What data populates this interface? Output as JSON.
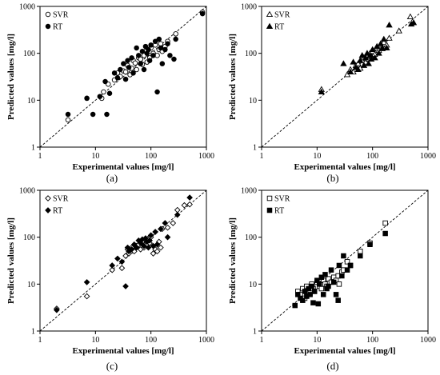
{
  "chart_data": [
    {
      "panel": "(a)",
      "type": "scatter",
      "xlabel": "Experimental values [mg/l]",
      "ylabel": "Predicted values [mg/l]",
      "xlim": [
        1,
        1000
      ],
      "ylim": [
        1,
        1000
      ],
      "log_scale": true,
      "grid": false,
      "x_ticks": [
        "1",
        "10",
        "100",
        "1000"
      ],
      "y_ticks": [
        "1",
        "10",
        "100",
        "1000"
      ],
      "reference_line": "y = x (dashed)",
      "legend_position": "top-left",
      "series": [
        {
          "name": "SVR",
          "marker": "circle",
          "fill": "open",
          "points": [
            [
              3.2,
              3.8
            ],
            [
              7,
              11
            ],
            [
              13,
              11
            ],
            [
              14,
              15
            ],
            [
              17,
              22
            ],
            [
              22,
              27
            ],
            [
              25,
              38
            ],
            [
              28,
              32
            ],
            [
              32,
              42
            ],
            [
              35,
              40
            ],
            [
              38,
              55
            ],
            [
              42,
              35
            ],
            [
              45,
              48
            ],
            [
              48,
              70
            ],
            [
              52,
              62
            ],
            [
              55,
              45
            ],
            [
              60,
              80
            ],
            [
              65,
              75
            ],
            [
              70,
              58
            ],
            [
              75,
              90
            ],
            [
              80,
              110
            ],
            [
              85,
              65
            ],
            [
              90,
              120
            ],
            [
              95,
              80
            ],
            [
              100,
              130
            ],
            [
              110,
              100
            ],
            [
              120,
              150
            ],
            [
              130,
              90
            ],
            [
              140,
              120
            ],
            [
              150,
              160
            ],
            [
              160,
              110
            ],
            [
              180,
              140
            ],
            [
              200,
              180
            ],
            [
              280,
              260
            ],
            [
              850,
              750
            ]
          ]
        },
        {
          "name": "RT",
          "marker": "circle",
          "fill": "solid",
          "points": [
            [
              3.2,
              5
            ],
            [
              7,
              11
            ],
            [
              9,
              5
            ],
            [
              12,
              12
            ],
            [
              15,
              25
            ],
            [
              16,
              5
            ],
            [
              18,
              14
            ],
            [
              22,
              38
            ],
            [
              25,
              30
            ],
            [
              28,
              45
            ],
            [
              32,
              60
            ],
            [
              35,
              28
            ],
            [
              38,
              70
            ],
            [
              40,
              50
            ],
            [
              45,
              80
            ],
            [
              48,
              38
            ],
            [
              55,
              130
            ],
            [
              60,
              90
            ],
            [
              65,
              60
            ],
            [
              70,
              110
            ],
            [
              75,
              45
            ],
            [
              80,
              140
            ],
            [
              85,
              100
            ],
            [
              90,
              120
            ],
            [
              95,
              70
            ],
            [
              100,
              150
            ],
            [
              110,
              90
            ],
            [
              120,
              180
            ],
            [
              130,
              15
            ],
            [
              140,
              200
            ],
            [
              150,
              130
            ],
            [
              160,
              60
            ],
            [
              180,
              120
            ],
            [
              200,
              160
            ],
            [
              220,
              90
            ],
            [
              260,
              75
            ],
            [
              280,
              200
            ],
            [
              850,
              700
            ]
          ]
        }
      ]
    },
    {
      "panel": "(b)",
      "type": "scatter",
      "xlabel": "Experimental values [mg/l]",
      "ylabel": "Predicted values [mg/l]",
      "xlim": [
        1,
        1000
      ],
      "ylim": [
        1,
        1000
      ],
      "log_scale": true,
      "grid": false,
      "x_ticks": [
        "1",
        "10",
        "100",
        "1000"
      ],
      "y_ticks": [
        "1",
        "10",
        "100",
        "1000"
      ],
      "reference_line": "y = x (dashed)",
      "legend_position": "top-left",
      "series": [
        {
          "name": "SVR",
          "marker": "triangle",
          "fill": "open",
          "points": [
            [
              12,
              17
            ],
            [
              35,
              35
            ],
            [
              40,
              45
            ],
            [
              45,
              40
            ],
            [
              50,
              55
            ],
            [
              55,
              60
            ],
            [
              60,
              48
            ],
            [
              65,
              70
            ],
            [
              70,
              80
            ],
            [
              75,
              65
            ],
            [
              80,
              90
            ],
            [
              85,
              75
            ],
            [
              90,
              100
            ],
            [
              95,
              85
            ],
            [
              100,
              110
            ],
            [
              110,
              95
            ],
            [
              120,
              130
            ],
            [
              130,
              115
            ],
            [
              140,
              150
            ],
            [
              150,
              125
            ],
            [
              160,
              170
            ],
            [
              180,
              150
            ],
            [
              200,
              210
            ],
            [
              300,
              300
            ],
            [
              480,
              600
            ]
          ]
        },
        {
          "name": "RT",
          "marker": "triangle",
          "fill": "solid",
          "points": [
            [
              12,
              15
            ],
            [
              30,
              60
            ],
            [
              40,
              40
            ],
            [
              45,
              65
            ],
            [
              50,
              50
            ],
            [
              55,
              45
            ],
            [
              60,
              70
            ],
            [
              65,
              90
            ],
            [
              70,
              55
            ],
            [
              75,
              80
            ],
            [
              80,
              100
            ],
            [
              85,
              60
            ],
            [
              90,
              90
            ],
            [
              95,
              75
            ],
            [
              100,
              120
            ],
            [
              110,
              80
            ],
            [
              120,
              140
            ],
            [
              130,
              100
            ],
            [
              140,
              160
            ],
            [
              150,
              130
            ],
            [
              160,
              200
            ],
            [
              180,
              130
            ],
            [
              200,
              400
            ],
            [
              500,
              420
            ],
            [
              550,
              450
            ]
          ]
        }
      ]
    },
    {
      "panel": "(c)",
      "type": "scatter",
      "xlabel": "Experimental values [mg/l]",
      "ylabel": "Predicted values [mg/l]",
      "xlim": [
        1,
        1000
      ],
      "ylim": [
        1,
        1000
      ],
      "log_scale": true,
      "grid": false,
      "x_ticks": [
        "1",
        "10",
        "100",
        "1000"
      ],
      "y_ticks": [
        "1",
        "10",
        "100",
        "1000"
      ],
      "reference_line": "y = x (dashed)",
      "legend_position": "top-left",
      "series": [
        {
          "name": "SVR",
          "marker": "diamond",
          "fill": "open",
          "points": [
            [
              2,
              3
            ],
            [
              7,
              5.5
            ],
            [
              20,
              20
            ],
            [
              30,
              22
            ],
            [
              35,
              40
            ],
            [
              38,
              55
            ],
            [
              40,
              45
            ],
            [
              45,
              60
            ],
            [
              50,
              50
            ],
            [
              55,
              65
            ],
            [
              60,
              70
            ],
            [
              65,
              55
            ],
            [
              70,
              80
            ],
            [
              75,
              60
            ],
            [
              80,
              90
            ],
            [
              85,
              70
            ],
            [
              90,
              95
            ],
            [
              95,
              75
            ],
            [
              100,
              100
            ],
            [
              110,
              45
            ],
            [
              120,
              55
            ],
            [
              130,
              50
            ],
            [
              140,
              80
            ],
            [
              150,
              60
            ],
            [
              160,
              150
            ],
            [
              200,
              160
            ],
            [
              250,
              200
            ],
            [
              300,
              380
            ],
            [
              400,
              480
            ],
            [
              500,
              500
            ]
          ]
        },
        {
          "name": "RT",
          "marker": "diamond",
          "fill": "solid",
          "points": [
            [
              2,
              2.8
            ],
            [
              7,
              11
            ],
            [
              20,
              25
            ],
            [
              25,
              35
            ],
            [
              30,
              30
            ],
            [
              35,
              9
            ],
            [
              38,
              60
            ],
            [
              40,
              50
            ],
            [
              45,
              55
            ],
            [
              50,
              70
            ],
            [
              55,
              60
            ],
            [
              60,
              85
            ],
            [
              65,
              75
            ],
            [
              70,
              90
            ],
            [
              75,
              65
            ],
            [
              80,
              95
            ],
            [
              85,
              80
            ],
            [
              90,
              60
            ],
            [
              95,
              85
            ],
            [
              100,
              110
            ],
            [
              110,
              65
            ],
            [
              120,
              130
            ],
            [
              130,
              70
            ],
            [
              150,
              150
            ],
            [
              180,
              200
            ],
            [
              200,
              100
            ],
            [
              300,
              300
            ],
            [
              500,
              700
            ]
          ]
        }
      ]
    },
    {
      "panel": "(d)",
      "type": "scatter",
      "xlabel": "Experimental values [mg/l]",
      "ylabel": "Predicted values [mg/l]",
      "xlim": [
        1,
        1000
      ],
      "ylim": [
        1,
        1000
      ],
      "log_scale": true,
      "grid": false,
      "x_ticks": [
        "1",
        "10",
        "100",
        "1000"
      ],
      "y_ticks": [
        "1",
        "10",
        "100",
        "1000"
      ],
      "reference_line": "y = x (dashed)",
      "legend_position": "top-left",
      "series": [
        {
          "name": "SVR",
          "marker": "square",
          "fill": "open",
          "points": [
            [
              4.5,
              7
            ],
            [
              5,
              6
            ],
            [
              5.5,
              8
            ],
            [
              6,
              5
            ],
            [
              6.5,
              9
            ],
            [
              7,
              7
            ],
            [
              7.5,
              6.5
            ],
            [
              8,
              10
            ],
            [
              8.5,
              8
            ],
            [
              9,
              7
            ],
            [
              10,
              11
            ],
            [
              11,
              9
            ],
            [
              12,
              8
            ],
            [
              13,
              12
            ],
            [
              14,
              10
            ],
            [
              15,
              9
            ],
            [
              16,
              13
            ],
            [
              18,
              11
            ],
            [
              20,
              14
            ],
            [
              22,
              12
            ],
            [
              24,
              15
            ],
            [
              25,
              10
            ],
            [
              28,
              18
            ],
            [
              30,
              20
            ],
            [
              35,
              30
            ],
            [
              40,
              25
            ],
            [
              60,
              50
            ],
            [
              90,
              75
            ],
            [
              170,
              200
            ]
          ]
        },
        {
          "name": "RT",
          "marker": "square",
          "fill": "solid",
          "points": [
            [
              4,
              3.5
            ],
            [
              4.5,
              6
            ],
            [
              5,
              5
            ],
            [
              5.5,
              4.5
            ],
            [
              6,
              7
            ],
            [
              6.5,
              5.5
            ],
            [
              7,
              8
            ],
            [
              7.5,
              6
            ],
            [
              8,
              9
            ],
            [
              8.5,
              4
            ],
            [
              9,
              7
            ],
            [
              10,
              12
            ],
            [
              10.5,
              3.8
            ],
            [
              11,
              10
            ],
            [
              12,
              14
            ],
            [
              13,
              6
            ],
            [
              14,
              16
            ],
            [
              15,
              8
            ],
            [
              16,
              9
            ],
            [
              18,
              20
            ],
            [
              20,
              11
            ],
            [
              22,
              6
            ],
            [
              24,
              4.5
            ],
            [
              25,
              25
            ],
            [
              28,
              15
            ],
            [
              30,
              40
            ],
            [
              35,
              20
            ],
            [
              40,
              25
            ],
            [
              60,
              40
            ],
            [
              90,
              70
            ],
            [
              170,
              120
            ]
          ]
        }
      ]
    }
  ]
}
